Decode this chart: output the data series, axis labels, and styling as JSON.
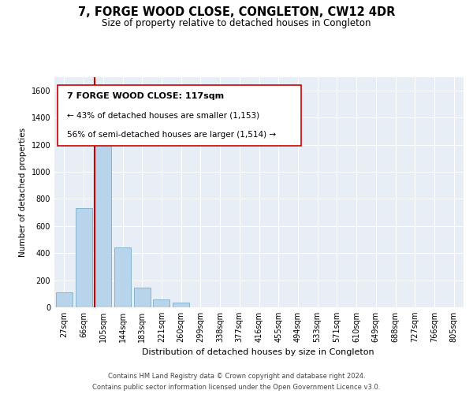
{
  "title": "7, FORGE WOOD CLOSE, CONGLETON, CW12 4DR",
  "subtitle": "Size of property relative to detached houses in Congleton",
  "xlabel": "Distribution of detached houses by size in Congleton",
  "ylabel": "Number of detached properties",
  "bar_labels": [
    "27sqm",
    "66sqm",
    "105sqm",
    "144sqm",
    "183sqm",
    "221sqm",
    "260sqm",
    "299sqm",
    "338sqm",
    "377sqm",
    "416sqm",
    "455sqm",
    "494sqm",
    "533sqm",
    "571sqm",
    "610sqm",
    "649sqm",
    "688sqm",
    "727sqm",
    "766sqm",
    "805sqm"
  ],
  "bar_values": [
    110,
    730,
    1200,
    440,
    145,
    60,
    35,
    0,
    0,
    0,
    0,
    0,
    0,
    0,
    0,
    0,
    0,
    0,
    0,
    0,
    0
  ],
  "bar_color": "#b8d4ea",
  "bar_edgecolor": "#7aaec8",
  "ylim": [
    0,
    1700
  ],
  "yticks": [
    0,
    200,
    400,
    600,
    800,
    1000,
    1200,
    1400,
    1600
  ],
  "property_line_x": 1.575,
  "annotation_text_line1": "7 FORGE WOOD CLOSE: 117sqm",
  "annotation_text_line2": "← 43% of detached houses are smaller (1,153)",
  "annotation_text_line3": "56% of semi-detached houses are larger (1,514) →",
  "vline_color": "#cc0000",
  "annotation_box_edgecolor": "#cc0000",
  "footer_line1": "Contains HM Land Registry data © Crown copyright and database right 2024.",
  "footer_line2": "Contains public sector information licensed under the Open Government Licence v3.0.",
  "plot_bg_color": "#e8eef5",
  "fig_bg_color": "#ffffff"
}
